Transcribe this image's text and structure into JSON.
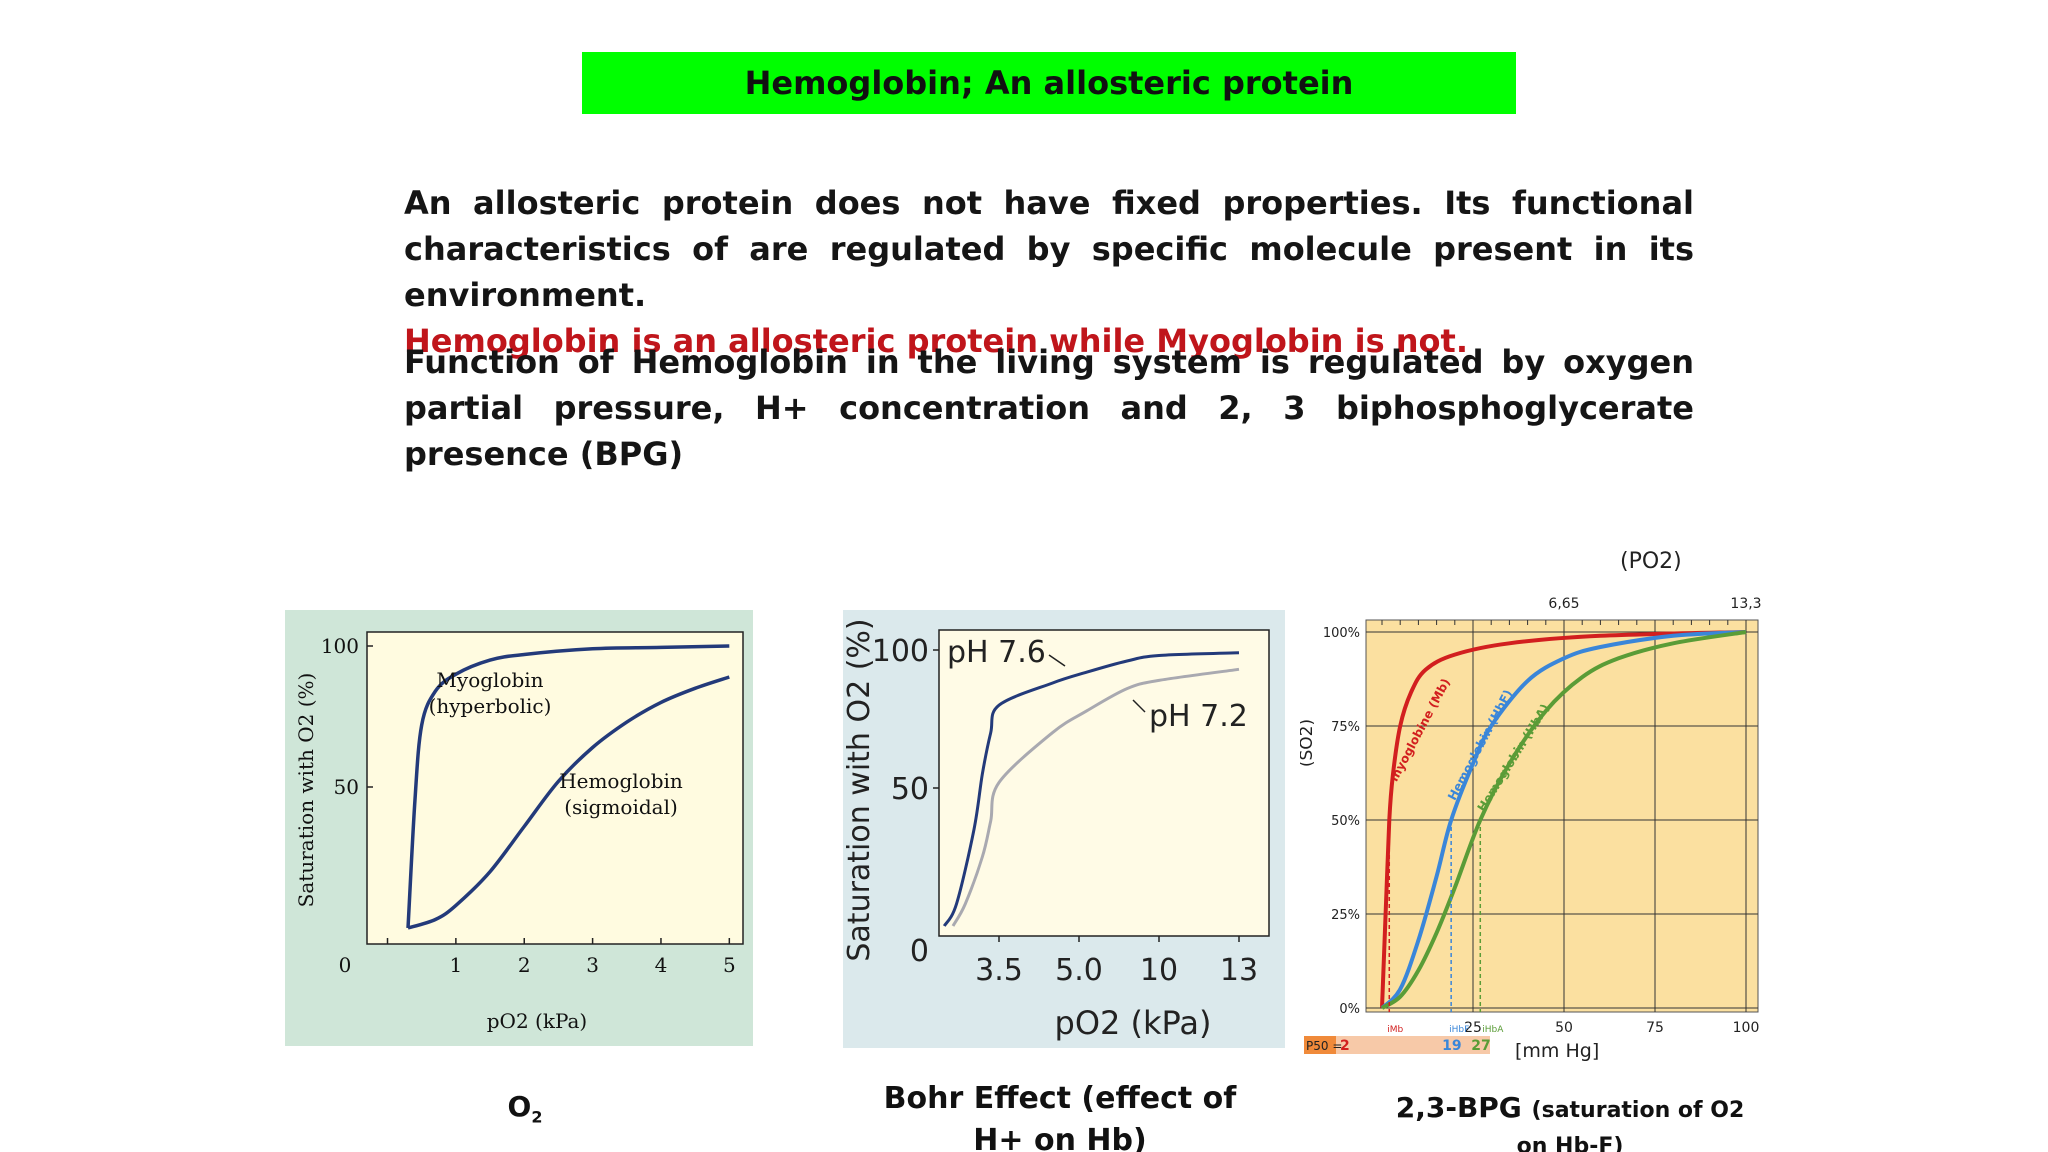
{
  "title": "Hemoglobin; An allosteric protein",
  "paragraph1": {
    "text": "An allosteric protein does not have fixed properties.  Its functional characteristics of are regulated by specific molecule present in its environment.",
    "highlight": "Hemoglobin is an allosteric protein while Myoglobin is not."
  },
  "paragraph2": "Function of Hemoglobin in the living system is regulated by oxygen partial pressure, H+ concentration  and 2, 3 biphosphoglycerate presence (BPG)",
  "captions": {
    "c1_main": "O",
    "c1_sub": "2",
    "c2_line1": "Bohr Effect (effect of",
    "c2_line2": "H+ on Hb)",
    "c3_main": "2,3-BPG",
    "c3_small1": "(saturation of O2",
    "c3_small2": "on Hb-F)"
  },
  "colors": {
    "title_bg": "#00ff00",
    "highlight": "#c0151b",
    "c1_bg": "#cfe6d8",
    "c1_plot": "#fffbe0",
    "curve_blue": "#233a7a",
    "c2_bg": "#dbe9ec",
    "c2_plot": "#fffbe6",
    "c2_light": "#a9a9b0",
    "c3_plot": "#fbe0a0",
    "mb_red": "#d21f1f",
    "hbf_blue": "#3a86d9",
    "hba_green": "#5a9c37"
  },
  "chart_data": [
    {
      "type": "line",
      "xlabel": "pO2 (kPa)",
      "ylabel": "Saturation with O2 (%)",
      "xlim": [
        0,
        5
      ],
      "ylim": [
        0,
        100
      ],
      "x_ticks": [
        "0",
        "1",
        "2",
        "3",
        "4",
        "5"
      ],
      "y_ticks": [
        "0",
        "50",
        "100"
      ],
      "series": [
        {
          "name": "Myoglobin (hyperbolic)",
          "x": [
            0.3,
            0.4,
            0.5,
            0.7,
            1.0,
            1.5,
            2.0,
            3.0,
            4.0,
            5.0
          ],
          "y": [
            0,
            45,
            72,
            84,
            90,
            95,
            97,
            99,
            99.5,
            100
          ]
        },
        {
          "name": "Hemoglobin (sigmoidal)",
          "x": [
            0.3,
            0.7,
            1.0,
            1.5,
            2.0,
            2.5,
            3.0,
            3.5,
            4.0,
            4.5,
            5.0
          ],
          "y": [
            0,
            3,
            8,
            20,
            36,
            52,
            64,
            73,
            80,
            85,
            89
          ]
        }
      ],
      "annotations": [
        {
          "line1": "Myoglobin",
          "line2": "(hyperbolic)"
        },
        {
          "line1": "Hemoglobin",
          "line2": "(sigmoidal)"
        }
      ]
    },
    {
      "type": "line",
      "xlabel": "pO2 (kPa)",
      "ylabel": "Saturation with O2 (%)",
      "ylim": [
        0,
        100
      ],
      "x_ticks": [
        "3.5",
        "5.0",
        "10",
        "13"
      ],
      "y_ticks": [
        "0",
        "50",
        "100"
      ],
      "series": [
        {
          "name": "pH 7.6",
          "x": [
            0.3,
            1.0,
            2.0,
            2.5,
            3.0,
            3.5,
            4.5,
            5.5,
            8,
            10,
            13.3
          ],
          "y": [
            0,
            8,
            35,
            55,
            70,
            80,
            88,
            92,
            96,
            98,
            99
          ]
        },
        {
          "name": "pH 7.2",
          "x": [
            0.8,
            1.5,
            2.5,
            3.0,
            3.5,
            4.5,
            5.5,
            8,
            10,
            13.3
          ],
          "y": [
            0,
            8,
            25,
            38,
            52,
            70,
            78,
            86,
            89,
            93
          ]
        }
      ],
      "annotations": [
        "pH 7.6",
        "pH 7.2"
      ]
    },
    {
      "type": "line",
      "top_label": "(PO2)",
      "top_ticks": [
        "6,65",
        "13,3"
      ],
      "xlabel": "[mm Hg]",
      "ylabel": "(SO2)",
      "xlim": [
        0,
        100
      ],
      "ylim": [
        0,
        100
      ],
      "x_ticks": [
        "25",
        "50",
        "75",
        "100"
      ],
      "y_ticks": [
        "0%",
        "25%",
        "50%",
        "75%",
        "100%"
      ],
      "series": [
        {
          "name": "myoglobine (Mb)",
          "x": [
            0,
            1,
            2,
            3,
            5,
            8,
            12,
            20,
            35,
            60,
            100
          ],
          "y": [
            0,
            25,
            50,
            62,
            75,
            84,
            90,
            94,
            97,
            99,
            100
          ]
        },
        {
          "name": "Hemoglobin (HbF)",
          "x": [
            0,
            5,
            10,
            15,
            19,
            25,
            30,
            40,
            50,
            60,
            80,
            100
          ],
          "y": [
            0,
            5,
            18,
            35,
            50,
            65,
            75,
            87,
            93,
            96,
            99,
            100
          ]
        },
        {
          "name": "Hemoglobin (HbA)",
          "x": [
            0,
            5,
            10,
            15,
            20,
            27,
            35,
            45,
            55,
            65,
            80,
            100
          ],
          "y": [
            0,
            3,
            10,
            20,
            32,
            50,
            65,
            79,
            88,
            93,
            97,
            100
          ]
        }
      ],
      "p50": {
        "label": "P50 =",
        "mb": "2",
        "hbf": "19",
        "hba": "27",
        "mb_tag": "iMb",
        "hbf_tag": "iHbF",
        "hba_tag": "iHbA"
      }
    }
  ]
}
